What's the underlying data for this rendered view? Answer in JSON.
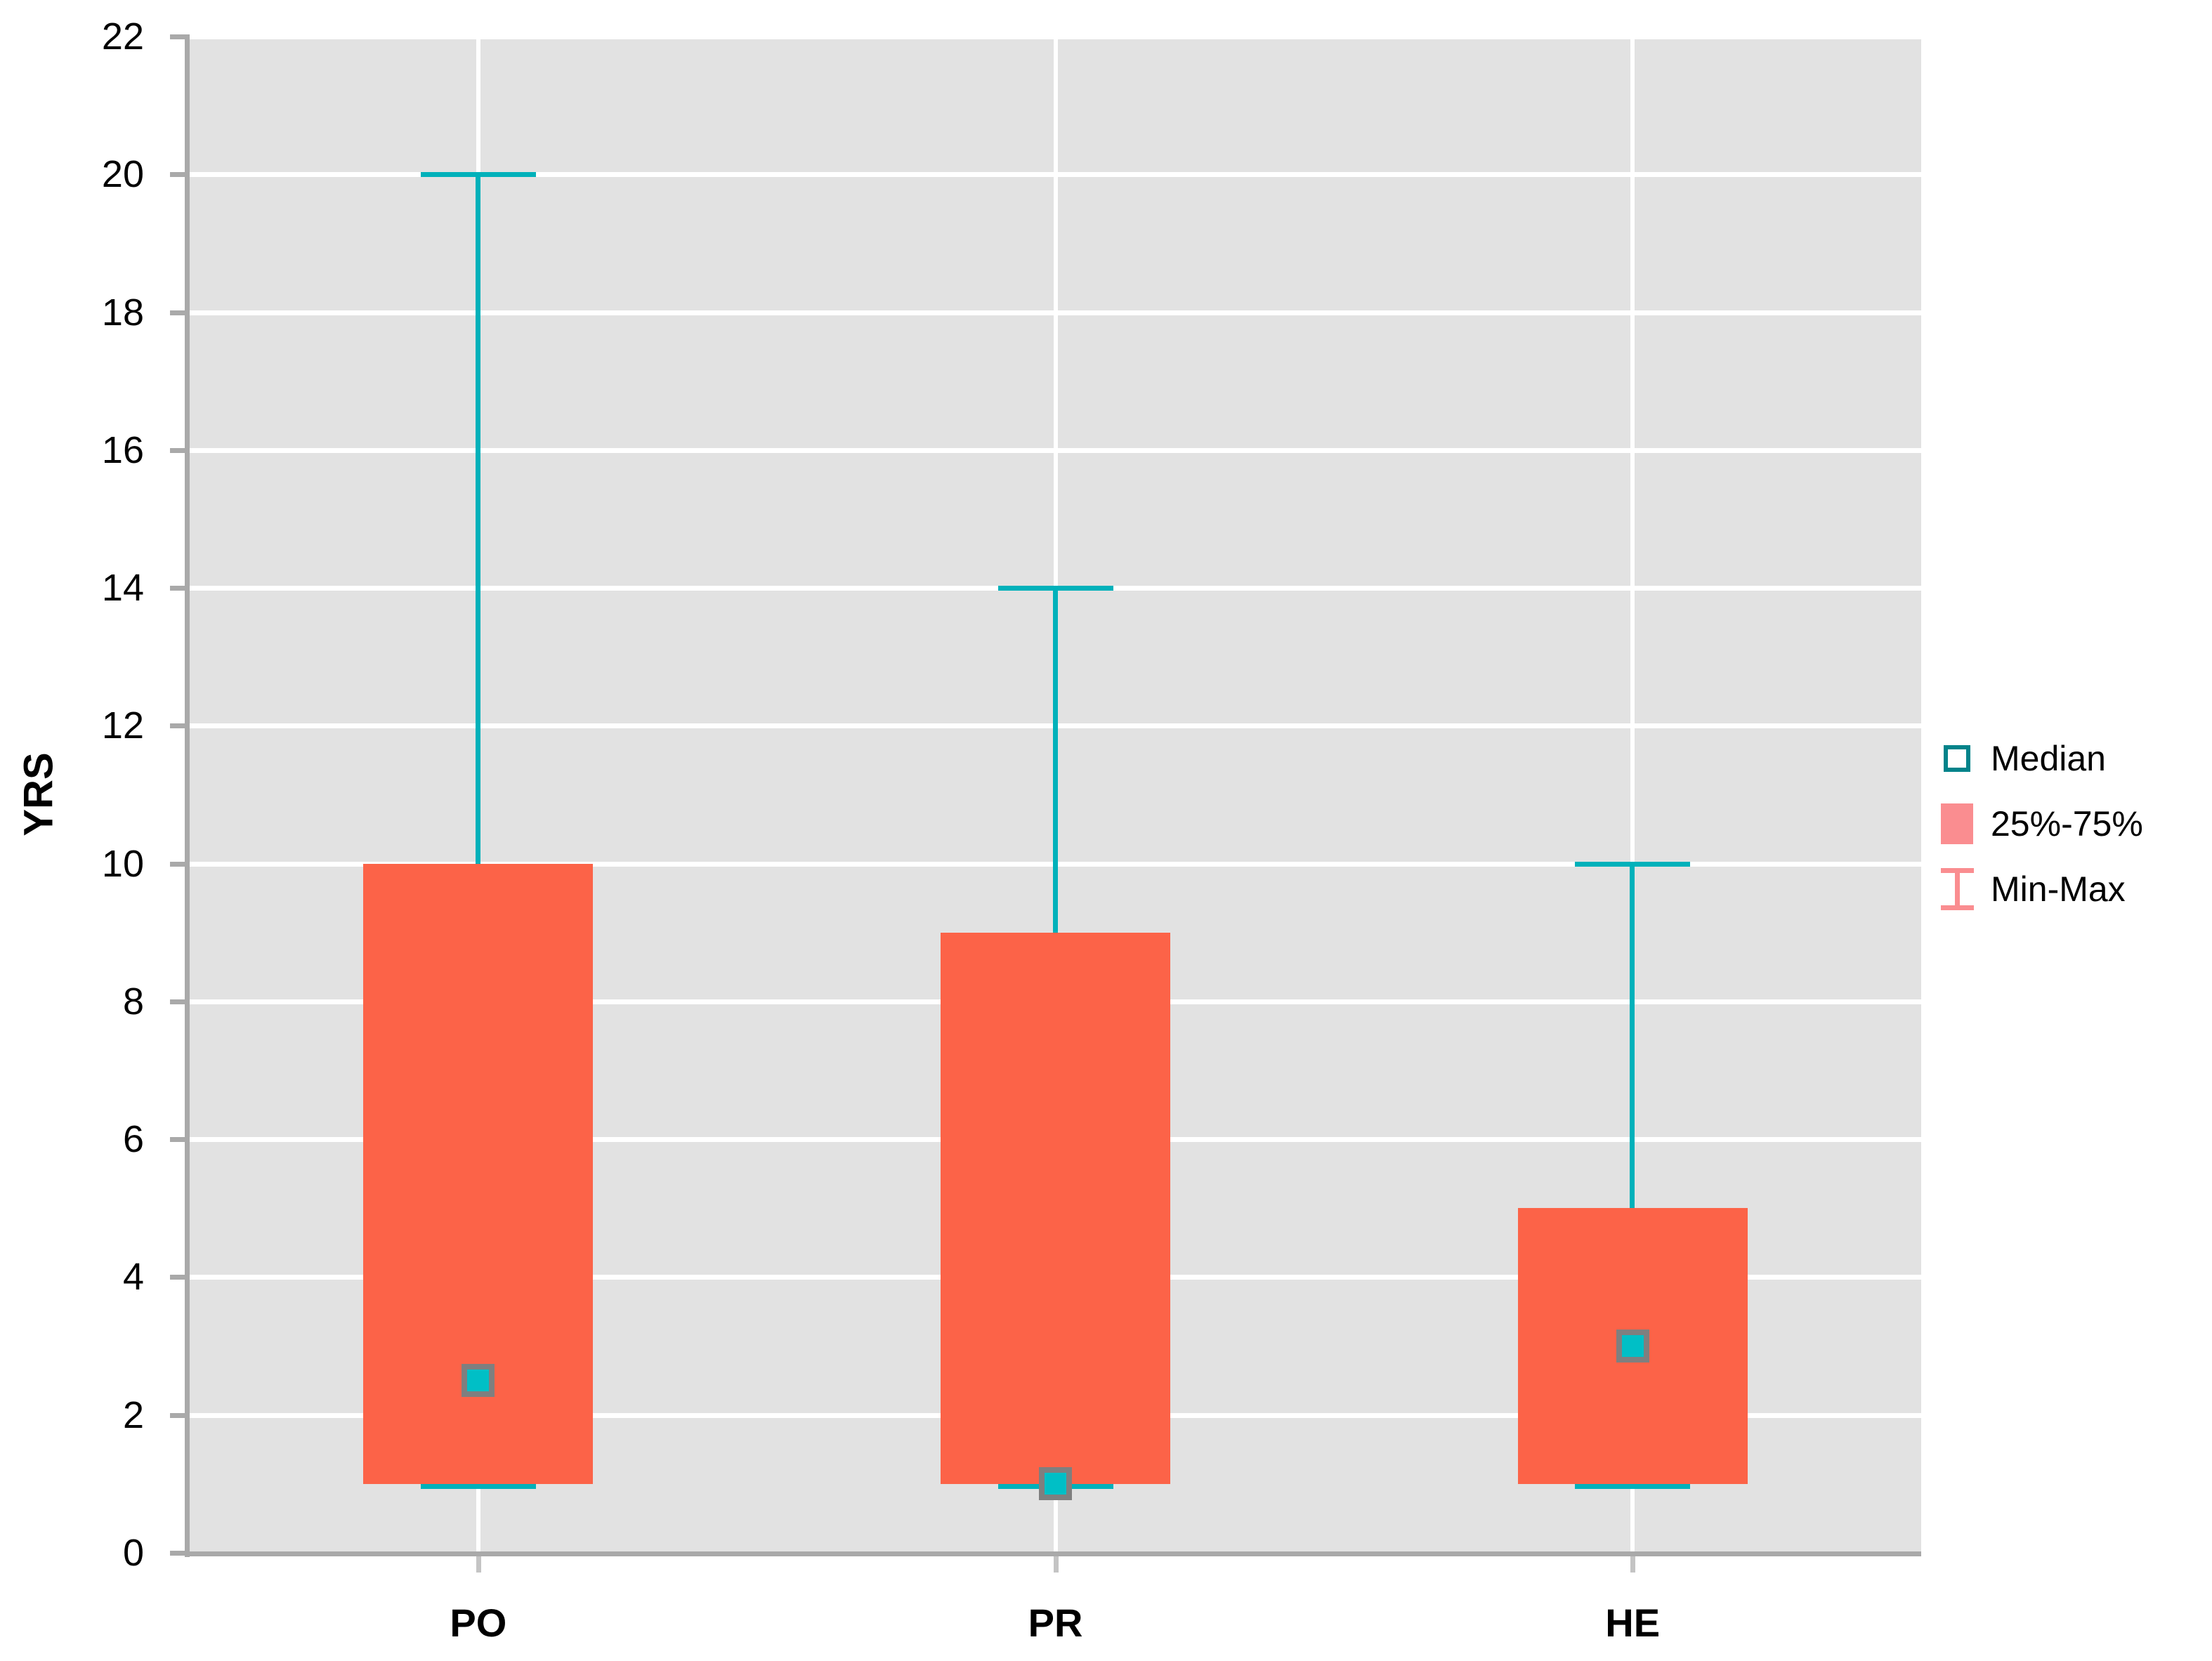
{
  "chart_data": {
    "type": "box",
    "title": "",
    "ylabel": "YRS",
    "xlabel": "",
    "ylim": [
      0,
      22
    ],
    "yticks": [
      "0",
      "2",
      "4",
      "6",
      "8",
      "10",
      "12",
      "14",
      "16",
      "18",
      "20",
      "22"
    ],
    "categories": [
      "PO",
      "PR",
      "HE"
    ],
    "series": [
      {
        "category": "PO",
        "min": 1,
        "q1": 1,
        "median": 2.5,
        "q3": 10,
        "max": 20
      },
      {
        "category": "PR",
        "min": 1,
        "q1": 1,
        "median": 1,
        "q3": 9,
        "max": 14
      },
      {
        "category": "HE",
        "min": 1,
        "q1": 1,
        "median": 3,
        "q3": 5,
        "max": 10
      }
    ],
    "grid": "horizontal white lines every 2 units, vertical white line at each category center",
    "legend_position": "right-outside"
  },
  "legend": {
    "items": [
      {
        "label": "Median",
        "symbol": "hollow-square"
      },
      {
        "label": "25%-75%",
        "symbol": "filled-square"
      },
      {
        "label": "Min-Max",
        "symbol": "whisker-ibeam"
      }
    ]
  },
  "colors": {
    "box_fill": "#FC6348",
    "whisker": "#00B1BA",
    "median_fill": "#00BFC6",
    "median_border": "#7F7F7F",
    "legend_swatch": "#FA8D90",
    "legend_median_outline": "#00838A",
    "plot_background": "#E2E2E2",
    "gridline": "#FFFFFF",
    "axis": "#A9A9A9",
    "x_tick": "#C4C4C4",
    "text": "#000000"
  }
}
